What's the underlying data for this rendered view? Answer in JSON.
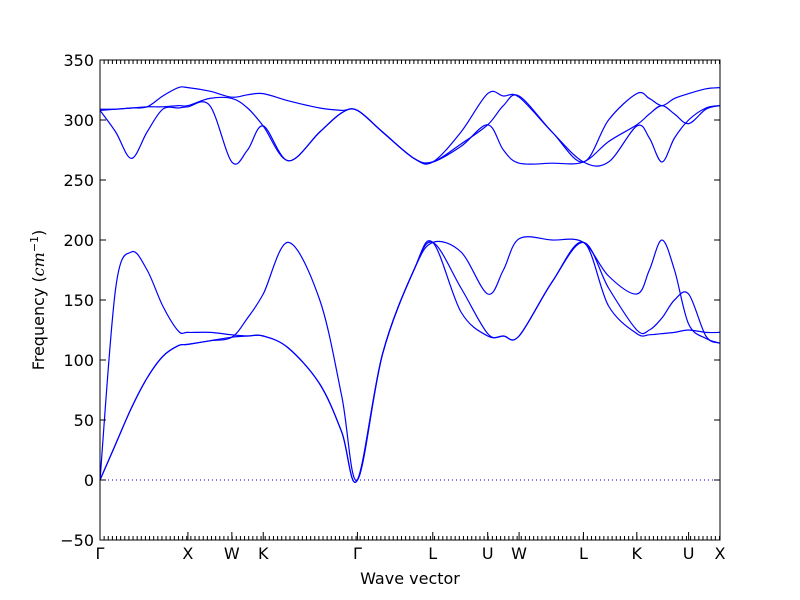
{
  "chart_data": {
    "type": "line",
    "title": "",
    "xlabel": "Wave vector",
    "ylabel_prefix": "Frequency (",
    "ylabel_unit": "cm",
    "ylabel_exponent": "−1",
    "ylabel_suffix": ")",
    "ylim": [
      -50,
      350
    ],
    "xlim": [
      0,
      19.75
    ],
    "y_ticks": [
      -50,
      0,
      50,
      100,
      150,
      200,
      250,
      300,
      350
    ],
    "y_tick_labels": [
      "−50",
      "0",
      "50",
      "100",
      "150",
      "200",
      "250",
      "300",
      "350"
    ],
    "x_ticks": [
      {
        "label": "Γ",
        "x": 0
      },
      {
        "label": "X",
        "x": 2.8
      },
      {
        "label": "W",
        "x": 4.2
      },
      {
        "label": "K",
        "x": 5.2
      },
      {
        "label": "Γ",
        "x": 8.2
      },
      {
        "label": "L",
        "x": 10.6
      },
      {
        "label": "U",
        "x": 12.35
      },
      {
        "label": "W",
        "x": 13.35
      },
      {
        "label": "L",
        "x": 15.4
      },
      {
        "label": "K",
        "x": 17.1
      },
      {
        "label": "U",
        "x": 18.75
      },
      {
        "label": "X",
        "x": 19.75
      }
    ],
    "zero_line": {
      "y": 0,
      "style": "dotted",
      "color": "#0000ff"
    },
    "line_color": "#0000ff",
    "grid": false,
    "series": [
      {
        "x": [
          0,
          0.5,
          1.0,
          1.5,
          2.0,
          2.5,
          2.8,
          3.5,
          4.2,
          4.7,
          5.2,
          6.0,
          7.0,
          7.7,
          8.2,
          9.0,
          10.0,
          10.6,
          11.5,
          12.35,
          12.85,
          13.35,
          14.4,
          15.4,
          16.2,
          17.1,
          17.5,
          17.9,
          18.3,
          18.75,
          19.3,
          19.75
        ],
        "y": [
          0,
          30,
          60,
          85,
          103,
          112,
          113,
          116,
          119,
          120,
          120,
          110,
          80,
          40,
          0,
          105,
          175,
          198,
          190,
          155,
          175,
          201,
          200,
          198,
          170,
          155,
          175,
          200,
          175,
          130,
          118,
          114
        ]
      },
      {
        "x": [
          0,
          0.5,
          1.0,
          1.5,
          2.0,
          2.5,
          2.8,
          3.5,
          4.2,
          4.7,
          5.2,
          6.0,
          7.0,
          7.7,
          8.2,
          9.0,
          10.0,
          10.6,
          11.5,
          12.35,
          12.85,
          13.35,
          14.4,
          15.4,
          16.2,
          17.1,
          17.5,
          17.9,
          18.3,
          18.75,
          19.3,
          19.75
        ],
        "y": [
          0,
          30,
          60,
          85,
          103,
          112,
          113,
          116,
          119,
          135,
          155,
          198,
          150,
          70,
          0,
          105,
          175,
          198,
          160,
          122,
          120,
          120,
          165,
          198,
          160,
          125,
          125,
          135,
          150,
          155,
          120,
          114
        ]
      },
      {
        "x": [
          0,
          0.5,
          1.0,
          1.5,
          2.0,
          2.5,
          2.8,
          3.5,
          4.2,
          4.7,
          5.2,
          6.0,
          7.0,
          7.7,
          8.2,
          9.0,
          10.0,
          10.6,
          11.5,
          12.35,
          12.85,
          13.35,
          14.4,
          15.4,
          16.2,
          17.1,
          17.5,
          17.9,
          18.3,
          18.75,
          19.3,
          19.75
        ],
        "y": [
          0,
          160,
          190,
          175,
          145,
          124,
          123,
          123,
          121,
          120,
          120,
          110,
          80,
          40,
          0,
          105,
          175,
          198,
          140,
          120,
          120,
          120,
          165,
          198,
          145,
          122,
          121,
          122,
          123,
          125,
          123,
          123
        ]
      },
      {
        "x": [
          0,
          0.5,
          1.0,
          1.5,
          2.0,
          2.5,
          2.8,
          3.5,
          4.2,
          4.7,
          5.2,
          6.0,
          7.0,
          7.7,
          8.2,
          9.0,
          10.0,
          10.6,
          11.5,
          12.35,
          12.85,
          13.35,
          14.4,
          15.4,
          16.2,
          17.1,
          17.5,
          17.9,
          18.3,
          18.75,
          19.3,
          19.75
        ],
        "y": [
          308,
          290,
          268,
          290,
          309,
          310,
          311,
          312,
          265,
          275,
          295,
          266,
          290,
          306,
          308,
          290,
          268,
          265,
          280,
          296,
          312,
          320,
          290,
          265,
          265,
          295,
          285,
          265,
          285,
          300,
          310,
          312
        ]
      },
      {
        "x": [
          0,
          0.5,
          1.0,
          1.5,
          2.0,
          2.5,
          2.8,
          3.5,
          4.2,
          4.7,
          5.2,
          6.0,
          7.0,
          7.7,
          8.2,
          9.0,
          10.0,
          10.6,
          11.5,
          12.35,
          12.85,
          13.35,
          14.4,
          15.4,
          16.2,
          17.1,
          17.5,
          17.9,
          18.3,
          18.75,
          19.3,
          19.75
        ],
        "y": [
          308,
          309,
          310,
          311,
          311,
          312,
          312,
          318,
          318,
          310,
          295,
          266,
          290,
          306,
          308,
          290,
          268,
          265,
          278,
          296,
          275,
          264,
          264,
          265,
          282,
          296,
          305,
          312,
          305,
          297,
          309,
          312
        ]
      },
      {
        "x": [
          0,
          0.5,
          1.0,
          1.5,
          2.0,
          2.5,
          2.8,
          3.5,
          4.2,
          4.7,
          5.2,
          6.0,
          7.0,
          7.7,
          8.2,
          9.0,
          10.0,
          10.6,
          11.5,
          12.35,
          12.85,
          13.35,
          14.4,
          15.4,
          16.2,
          17.1,
          17.5,
          17.9,
          18.3,
          18.75,
          19.3,
          19.75
        ],
        "y": [
          309,
          309,
          310,
          311,
          320,
          327,
          327,
          324,
          319,
          321,
          322,
          316,
          310,
          308,
          308,
          290,
          268,
          265,
          290,
          322,
          320,
          319,
          290,
          265,
          300,
          322,
          318,
          312,
          318,
          322,
          326,
          327
        ]
      }
    ]
  }
}
